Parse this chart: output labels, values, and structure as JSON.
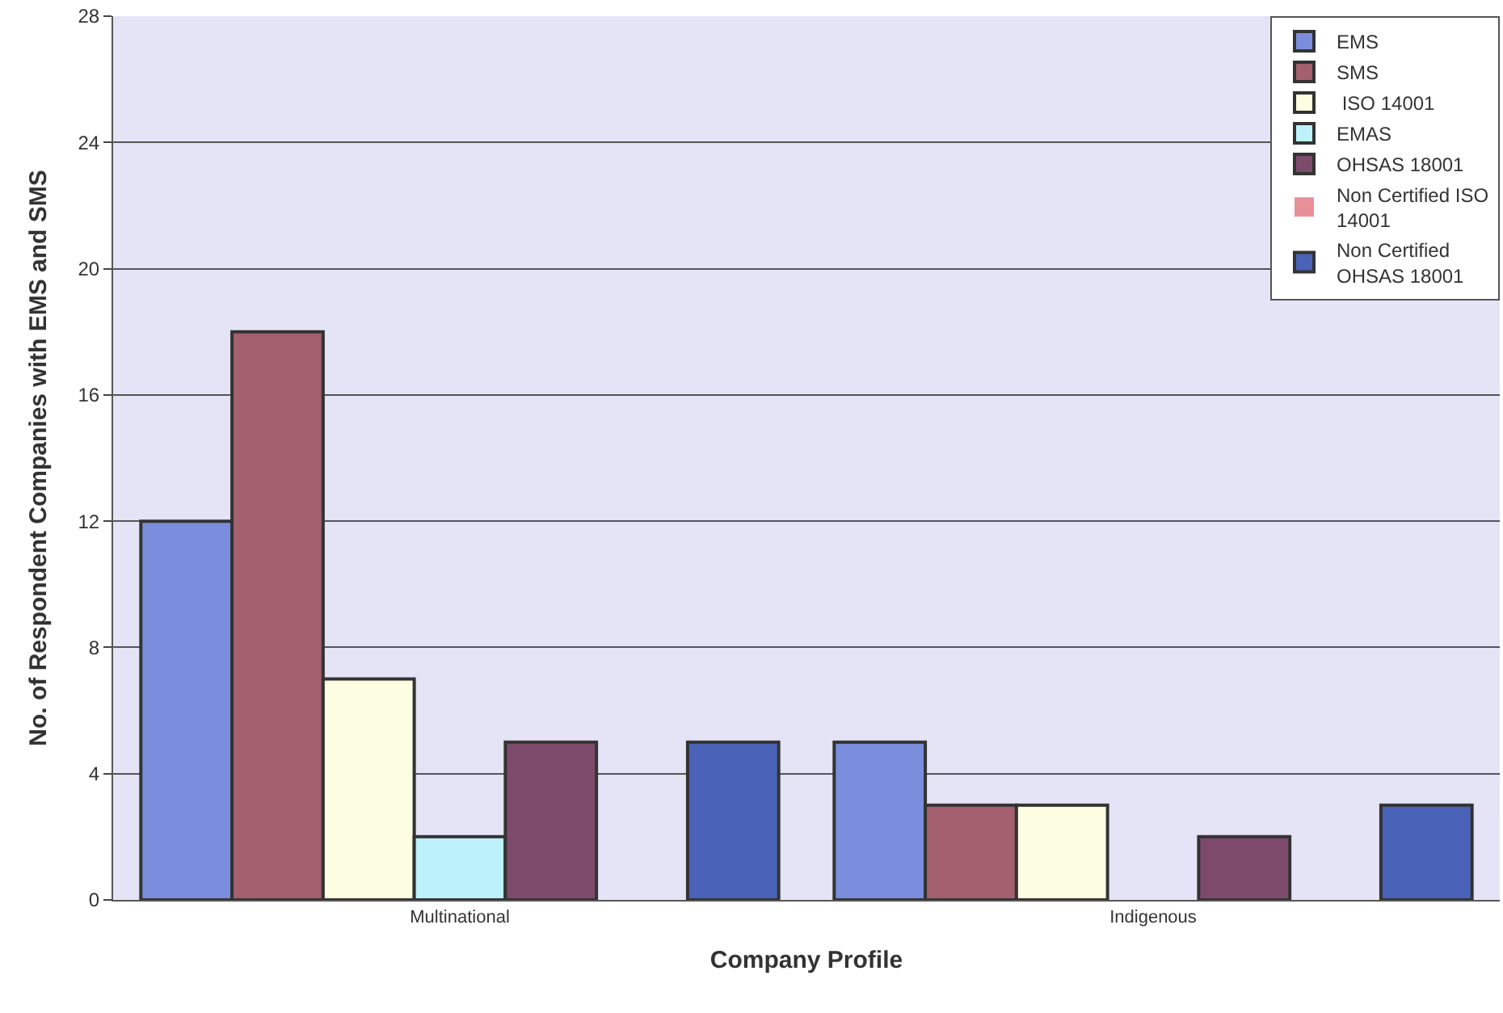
{
  "chart_data": {
    "type": "bar",
    "xlabel": "Company Profile",
    "ylabel": "No. of Respondent Companies with EMS and SMS",
    "categories": [
      "Multinational",
      "Indigenous"
    ],
    "series": [
      {
        "name": "EMS",
        "color": "#7b8ede",
        "values": [
          12,
          5
        ]
      },
      {
        "name": "SMS",
        "color": "#a4606e",
        "values": [
          18,
          3
        ]
      },
      {
        "name": " ISO 14001",
        "color": "#fdfde2",
        "values": [
          7,
          3
        ]
      },
      {
        "name": "EMAS",
        "color": "#bdf2fa",
        "values": [
          2,
          0
        ]
      },
      {
        "name": "OHSAS 18001",
        "color": "#7e4a6c",
        "values": [
          5,
          2
        ]
      },
      {
        "name": "Non Certified ISO 14001",
        "color": "#e8909a",
        "values": [
          0,
          0
        ]
      },
      {
        "name": "Non Certified OHSAS 18001",
        "color": "#4a62b8",
        "values": [
          5,
          3
        ]
      }
    ],
    "ylim": [
      0,
      28
    ],
    "yticks": [
      0,
      4,
      8,
      12,
      16,
      20,
      24,
      28
    ],
    "grid": "y",
    "legend": "top right"
  }
}
